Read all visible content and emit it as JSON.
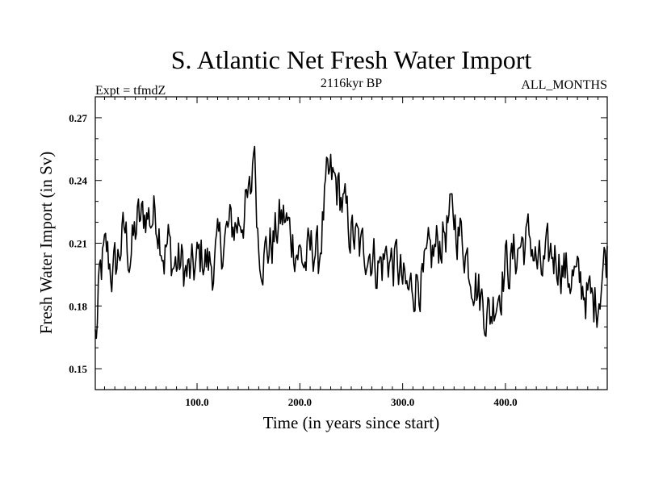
{
  "chart_data": {
    "type": "line",
    "title": "S. Atlantic Net Fresh Water Import",
    "subtitle_left": "Expt = tfmdZ",
    "subtitle_center": "2116kyr BP",
    "subtitle_right": "ALL_MONTHS",
    "xlabel": "Time (in years since start)",
    "ylabel": "Fresh Water Import (in Sv)",
    "xlim": [
      1,
      499
    ],
    "ylim": [
      0.14,
      0.28
    ],
    "xticks": [
      100,
      200,
      300,
      400
    ],
    "xtick_labels": [
      "100.0",
      "200.0",
      "300.0",
      "400.0"
    ],
    "yticks": [
      0.15,
      0.18,
      0.21,
      0.24,
      0.27
    ],
    "ytick_labels": [
      "0.15",
      "0.18",
      "0.21",
      "0.24",
      "0.27"
    ],
    "grid": false,
    "series": [
      {
        "name": "S. Atlantic net fresh water import",
        "anchors_x": [
          1,
          3,
          5,
          8,
          12,
          15,
          18,
          22,
          26,
          30,
          34,
          38,
          42,
          46,
          50,
          55,
          60,
          65,
          68,
          72,
          76,
          80,
          85,
          90,
          95,
          100,
          105,
          110,
          115,
          120,
          125,
          130,
          135,
          140,
          145,
          150,
          153,
          155,
          157,
          160,
          165,
          170,
          175,
          180,
          185,
          190,
          195,
          200,
          205,
          210,
          215,
          218,
          222,
          226,
          230,
          234,
          238,
          242,
          246,
          250,
          255,
          260,
          265,
          270,
          275,
          280,
          285,
          290,
          295,
          300,
          305,
          310,
          315,
          320,
          325,
          330,
          335,
          340,
          345,
          350,
          355,
          360,
          365,
          370,
          375,
          380,
          385,
          390,
          395,
          400,
          405,
          410,
          415,
          420,
          425,
          430,
          435,
          440,
          445,
          450,
          455,
          460,
          465,
          470,
          475,
          480,
          485,
          490,
          495,
          499
        ],
        "anchors_y": [
          0.165,
          0.17,
          0.19,
          0.2,
          0.205,
          0.2,
          0.195,
          0.2,
          0.21,
          0.215,
          0.205,
          0.21,
          0.22,
          0.22,
          0.225,
          0.222,
          0.225,
          0.215,
          0.205,
          0.21,
          0.2,
          0.2,
          0.2,
          0.195,
          0.195,
          0.2,
          0.205,
          0.2,
          0.2,
          0.205,
          0.21,
          0.215,
          0.218,
          0.22,
          0.225,
          0.228,
          0.235,
          0.262,
          0.24,
          0.21,
          0.205,
          0.208,
          0.212,
          0.22,
          0.222,
          0.215,
          0.21,
          0.205,
          0.2,
          0.205,
          0.21,
          0.2,
          0.22,
          0.235,
          0.24,
          0.238,
          0.235,
          0.228,
          0.22,
          0.215,
          0.21,
          0.205,
          0.21,
          0.205,
          0.2,
          0.2,
          0.205,
          0.2,
          0.2,
          0.19,
          0.185,
          0.19,
          0.195,
          0.19,
          0.2,
          0.205,
          0.21,
          0.215,
          0.22,
          0.222,
          0.215,
          0.21,
          0.2,
          0.195,
          0.185,
          0.18,
          0.175,
          0.185,
          0.19,
          0.2,
          0.2,
          0.205,
          0.21,
          0.21,
          0.212,
          0.2,
          0.195,
          0.2,
          0.205,
          0.205,
          0.2,
          0.195,
          0.195,
          0.19,
          0.19,
          0.185,
          0.18,
          0.185,
          0.2,
          0.205
        ],
        "noise_amplitude": 0.012
      }
    ],
    "line_color": "#000000"
  }
}
